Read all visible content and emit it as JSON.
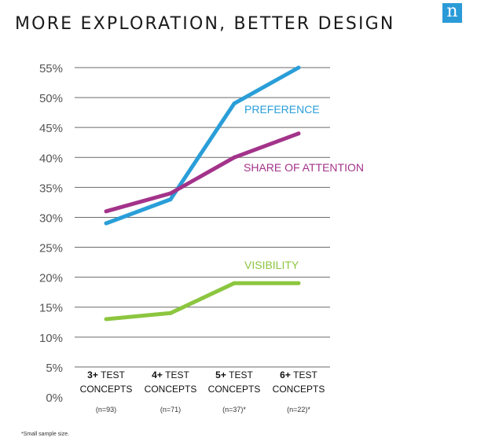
{
  "title": "MORE EXPLORATION, BETTER DESIGN",
  "logo_letter": "n",
  "footnote": "*Small sample size.",
  "colors": {
    "preference": "#2a9ed8",
    "share_of_attention": "#a3338a",
    "visibility": "#8cc63f",
    "grid": "#6a6a6a",
    "axis_text": "#555555",
    "logo": "#2b9bd8"
  },
  "chart_data": {
    "type": "line",
    "title": "MORE EXPLORATION, BETTER DESIGN",
    "xlabel": "",
    "ylabel": "",
    "ylim": [
      0,
      55
    ],
    "yticks": [
      0,
      5,
      10,
      15,
      20,
      25,
      30,
      35,
      40,
      45,
      50,
      55
    ],
    "ytick_labels": [
      "0%",
      "5%",
      "10%",
      "15%",
      "20%",
      "25%",
      "30%",
      "35%",
      "40%",
      "45%",
      "50%",
      "55%"
    ],
    "categories": [
      {
        "line1_bold": "3+",
        "line1_rest": " TEST",
        "line2": "CONCEPTS",
        "sample": "(n=93)"
      },
      {
        "line1_bold": "4+",
        "line1_rest": " TEST",
        "line2": "CONCEPTS",
        "sample": "(n=71)"
      },
      {
        "line1_bold": "5+",
        "line1_rest": " TEST",
        "line2": "CONCEPTS",
        "sample": "(n=37)*"
      },
      {
        "line1_bold": "6+",
        "line1_rest": " TEST",
        "line2": "CONCEPTS",
        "sample": "(n=22)*"
      }
    ],
    "series": [
      {
        "key": "preference",
        "name": "PREFERENCE",
        "values": [
          29,
          33,
          49,
          55
        ],
        "color": "#2a9ed8"
      },
      {
        "key": "share_of_attention",
        "name": "SHARE OF ATTENTION",
        "values": [
          31,
          34,
          40,
          44
        ],
        "color": "#a3338a"
      },
      {
        "key": "visibility",
        "name": "VISIBILITY",
        "values": [
          13,
          14,
          19,
          19
        ],
        "color": "#8cc63f"
      }
    ],
    "grid": true,
    "legend": "inline labels beside lines"
  }
}
